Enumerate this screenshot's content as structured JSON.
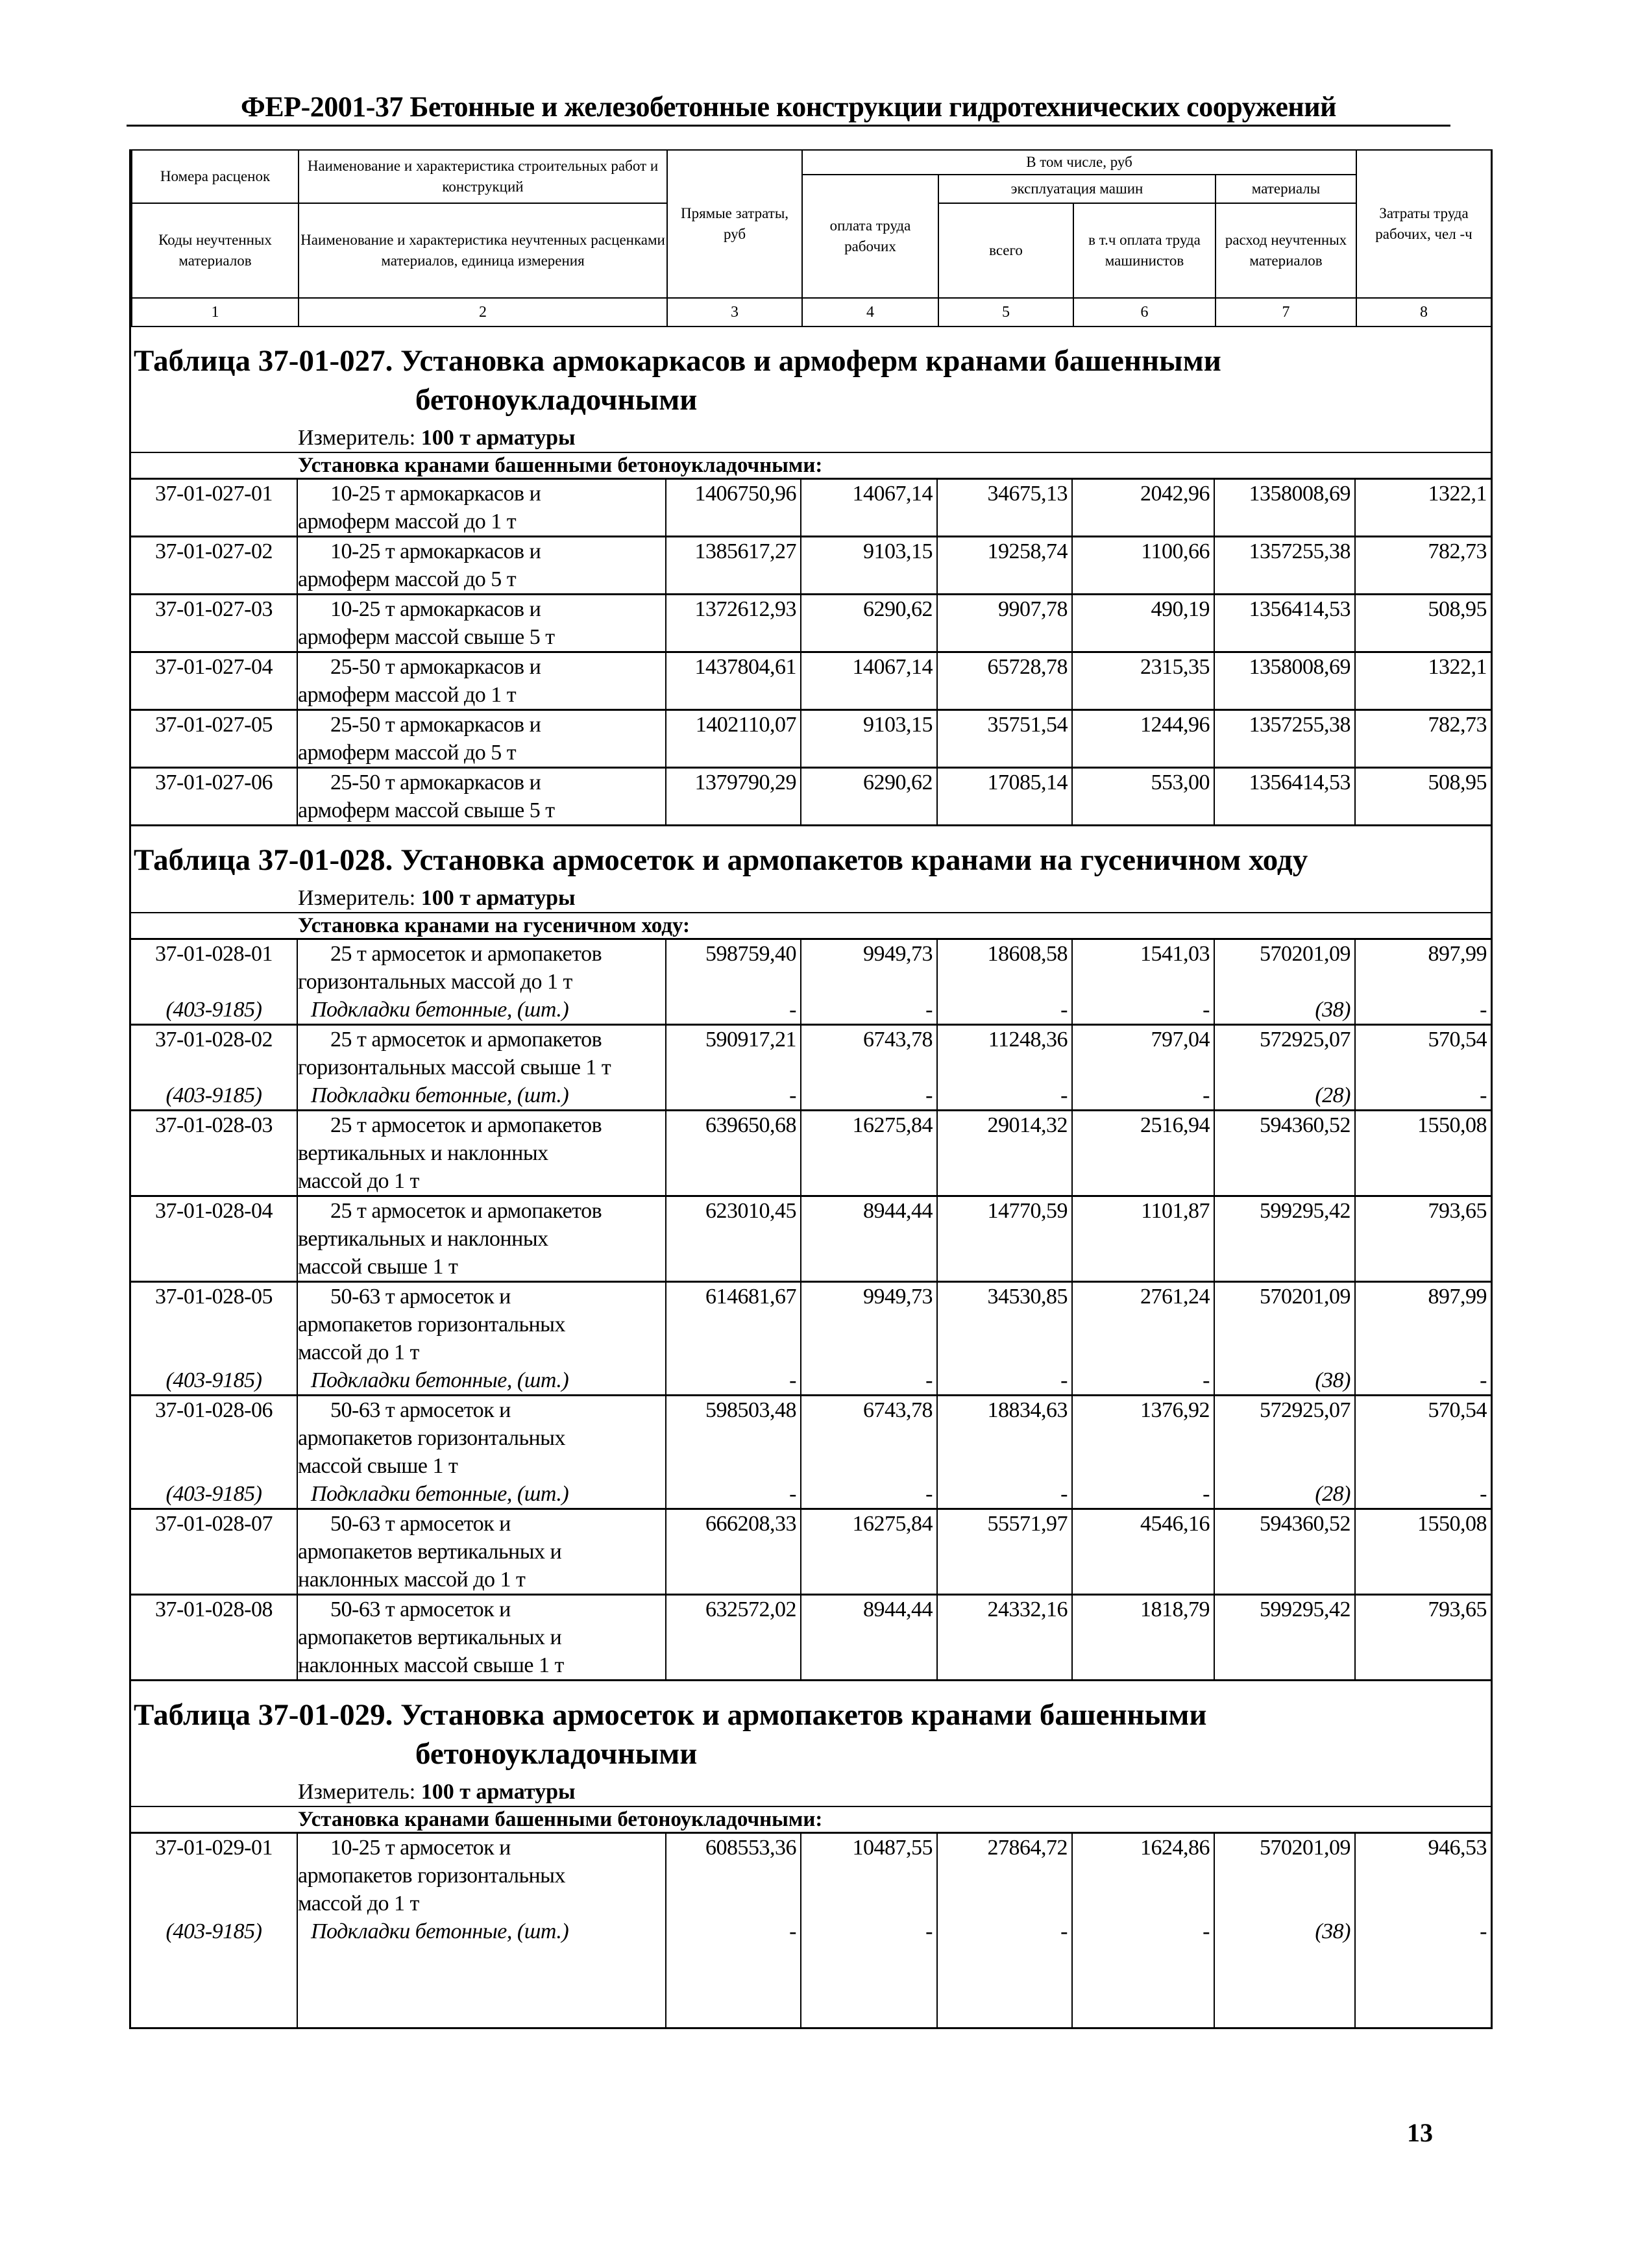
{
  "header_title": "ФЕР-2001-37 Бетонные и железобетонные конструкции гидротехнических сооружений",
  "column_headers": {
    "col1_top": "Номера расценок",
    "col1_bottom": "Коды неучтенных материалов",
    "col2_top": "Наименование и характеристика строительных работ и конструкций",
    "col2_bottom": "Наименование и характеристика неучтенных расценками материалов, единица измерения",
    "col3": "Прямые затраты, руб",
    "incl": "В том числе, руб",
    "col4": "оплата труда рабочих",
    "machines": "эксплуатация машин",
    "col5": "всего",
    "col6": "в т.ч оплата труда машинистов",
    "materials": "материалы",
    "col7": "расход неучтенных материалов",
    "col8": "Затраты труда рабочих, чел -ч"
  },
  "column_numbers": [
    "1",
    "2",
    "3",
    "4",
    "5",
    "6",
    "7",
    "8"
  ],
  "tables": [
    {
      "title_lines": [
        "Таблица 37-01-027. Установка армокаркасов и армоферм кранами башенными",
        "бетоноукладочными"
      ],
      "measure_label": "Измеритель:",
      "measure_value": "100 т арматуры",
      "group_label": "Установка кранами башенными бетоноукладочными:",
      "rows": [
        {
          "code": "37-01-027-01",
          "desc": [
            "10-25 т армокаркасов и",
            "армоферм массой до 1 т"
          ],
          "values": [
            "1406750,96",
            "14067,14",
            "34675,13",
            "2042,96",
            "1358008,69",
            "1322,1"
          ]
        },
        {
          "code": "37-01-027-02",
          "desc": [
            "10-25 т армокаркасов и",
            "армоферм массой до 5 т"
          ],
          "values": [
            "1385617,27",
            "9103,15",
            "19258,74",
            "1100,66",
            "1357255,38",
            "782,73"
          ]
        },
        {
          "code": "37-01-027-03",
          "desc": [
            "10-25 т армокаркасов и",
            "армоферм массой свыше 5 т"
          ],
          "values": [
            "1372612,93",
            "6290,62",
            "9907,78",
            "490,19",
            "1356414,53",
            "508,95"
          ]
        },
        {
          "code": "37-01-027-04",
          "desc": [
            "25-50 т армокаркасов и",
            "армоферм массой до 1 т"
          ],
          "values": [
            "1437804,61",
            "14067,14",
            "65728,78",
            "2315,35",
            "1358008,69",
            "1322,1"
          ]
        },
        {
          "code": "37-01-027-05",
          "desc": [
            "25-50 т армокаркасов и",
            "армоферм массой до 5 т"
          ],
          "values": [
            "1402110,07",
            "9103,15",
            "35751,54",
            "1244,96",
            "1357255,38",
            "782,73"
          ]
        },
        {
          "code": "37-01-027-06",
          "desc": [
            "25-50 т армокаркасов и",
            "армоферм массой свыше 5 т"
          ],
          "values": [
            "1379790,29",
            "6290,62",
            "17085,14",
            "553,00",
            "1356414,53",
            "508,95"
          ]
        }
      ]
    },
    {
      "title_lines": [
        "Таблица 37-01-028. Установка армосеток и армопакетов кранами на гусеничном ходу"
      ],
      "measure_label": "Измеритель:",
      "measure_value": "100 т арматуры",
      "group_label": "Установка кранами на гусеничном ходу:",
      "rows": [
        {
          "code": "37-01-028-01",
          "desc": [
            "25 т армосеток и армопакетов",
            "горизонтальных массой до 1 т"
          ],
          "values": [
            "598759,40",
            "9949,73",
            "18608,58",
            "1541,03",
            "570201,09",
            "897,99"
          ],
          "sub": {
            "code": "(403-9185)",
            "desc": "Подкладки бетонные, (шт.)",
            "values": [
              "-",
              "-",
              "-",
              "-",
              "(38)",
              "-"
            ]
          }
        },
        {
          "code": "37-01-028-02",
          "desc": [
            "25 т армосеток и армопакетов",
            "горизонтальных массой свыше 1 т"
          ],
          "values": [
            "590917,21",
            "6743,78",
            "11248,36",
            "797,04",
            "572925,07",
            "570,54"
          ],
          "sub": {
            "code": "(403-9185)",
            "desc": "Подкладки бетонные, (шт.)",
            "values": [
              "-",
              "-",
              "-",
              "-",
              "(28)",
              "-"
            ]
          }
        },
        {
          "code": "37-01-028-03",
          "desc": [
            "25 т армосеток и армопакетов",
            "вертикальных и наклонных",
            "массой до 1 т"
          ],
          "values": [
            "639650,68",
            "16275,84",
            "29014,32",
            "2516,94",
            "594360,52",
            "1550,08"
          ]
        },
        {
          "code": "37-01-028-04",
          "desc": [
            "25 т армосеток и армопакетов",
            "вертикальных и наклонных",
            "массой свыше 1 т"
          ],
          "values": [
            "623010,45",
            "8944,44",
            "14770,59",
            "1101,87",
            "599295,42",
            "793,65"
          ]
        },
        {
          "code": "37-01-028-05",
          "desc": [
            "50-63 т армосеток и",
            "армопакетов горизонтальных",
            "массой до 1 т"
          ],
          "values": [
            "614681,67",
            "9949,73",
            "34530,85",
            "2761,24",
            "570201,09",
            "897,99"
          ],
          "sub": {
            "code": "(403-9185)",
            "desc": "Подкладки бетонные, (шт.)",
            "values": [
              "-",
              "-",
              "-",
              "-",
              "(38)",
              "-"
            ]
          }
        },
        {
          "code": "37-01-028-06",
          "desc": [
            "50-63 т армосеток и",
            "армопакетов горизонтальных",
            "массой свыше 1 т"
          ],
          "values": [
            "598503,48",
            "6743,78",
            "18834,63",
            "1376,92",
            "572925,07",
            "570,54"
          ],
          "sub": {
            "code": "(403-9185)",
            "desc": "Подкладки бетонные, (шт.)",
            "values": [
              "-",
              "-",
              "-",
              "-",
              "(28)",
              "-"
            ]
          }
        },
        {
          "code": "37-01-028-07",
          "desc": [
            "50-63 т армосеток и",
            "армопакетов вертикальных и",
            "наклонных массой до 1 т"
          ],
          "values": [
            "666208,33",
            "16275,84",
            "55571,97",
            "4546,16",
            "594360,52",
            "1550,08"
          ]
        },
        {
          "code": "37-01-028-08",
          "desc": [
            "50-63 т армосеток и",
            "армопакетов вертикальных и",
            "наклонных массой свыше 1 т"
          ],
          "values": [
            "632572,02",
            "8944,44",
            "24332,16",
            "1818,79",
            "599295,42",
            "793,65"
          ]
        }
      ]
    },
    {
      "title_lines": [
        "Таблица 37-01-029. Установка армосеток и армопакетов кранами башенными",
        "бетоноукладочными"
      ],
      "measure_label": "Измеритель:",
      "measure_value": "100 т арматуры",
      "group_label": "Установка кранами башенными бетоноукладочными:",
      "rows": [
        {
          "code": "37-01-029-01",
          "desc": [
            "10-25 т армосеток и",
            "армопакетов горизонтальных",
            "массой до 1 т"
          ],
          "values": [
            "608553,36",
            "10487,55",
            "27864,72",
            "1624,86",
            "570201,09",
            "946,53"
          ],
          "sub": {
            "code": "(403-9185)",
            "desc": "Подкладки бетонные, (шт.)",
            "values": [
              "-",
              "-",
              "-",
              "-",
              "(38)",
              "-"
            ]
          }
        }
      ]
    }
  ],
  "page_number": "13"
}
